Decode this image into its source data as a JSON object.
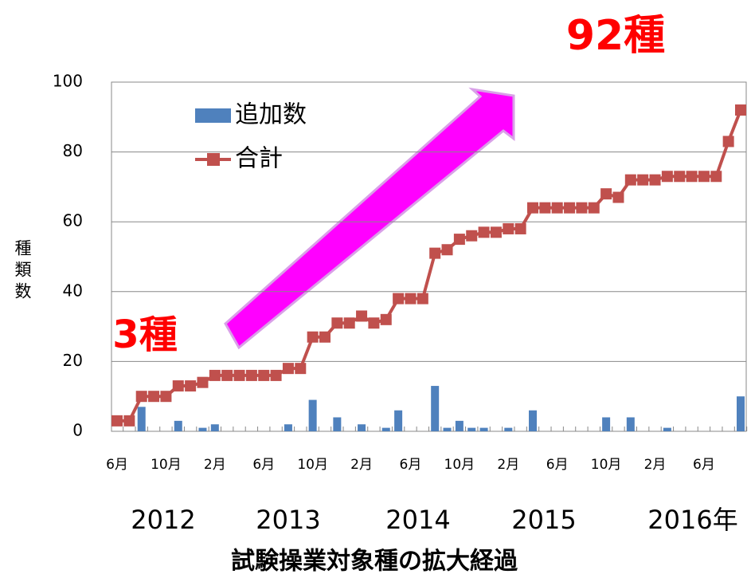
{
  "chart_data": {
    "type": "bar_line",
    "title": "試験操業対象種の拡大経過",
    "y_label": "種類数",
    "annotations": [
      "92種",
      "3種"
    ],
    "year_labels": [
      "2012",
      "2013",
      "2014",
      "2015",
      "2016年"
    ],
    "categories": [
      "6月",
      null,
      null,
      null,
      "10月",
      null,
      null,
      null,
      "2月",
      null,
      null,
      null,
      "6月",
      null,
      null,
      null,
      "10月",
      null,
      null,
      null,
      "2月",
      null,
      null,
      null,
      "6月",
      null,
      null,
      null,
      "10月",
      null,
      null,
      null,
      "2月",
      null,
      null,
      null,
      "6月",
      null,
      null,
      null,
      "10月",
      null,
      null,
      null,
      "2月",
      null,
      null,
      null,
      "6月",
      null,
      null,
      null
    ],
    "series": [
      {
        "name": "追加数",
        "type": "bar",
        "color": "#4f81bd",
        "values": [
          0,
          0,
          7,
          0,
          0,
          3,
          0,
          1,
          2,
          0,
          0,
          0,
          0,
          0,
          2,
          0,
          9,
          0,
          4,
          0,
          2,
          0,
          1,
          6,
          0,
          0,
          13,
          1,
          3,
          1,
          1,
          0,
          1,
          0,
          6,
          0,
          0,
          0,
          0,
          0,
          4,
          0,
          4,
          0,
          0,
          1,
          0,
          0,
          0,
          0,
          0,
          10
        ]
      },
      {
        "name": "合計",
        "type": "line",
        "color": "#c0504d",
        "values": [
          3,
          3,
          10,
          10,
          10,
          13,
          13,
          14,
          16,
          16,
          16,
          16,
          16,
          16,
          18,
          18,
          27,
          27,
          31,
          31,
          33,
          31,
          32,
          38,
          38,
          38,
          51,
          52,
          55,
          56,
          57,
          57,
          58,
          58,
          64,
          64,
          64,
          64,
          64,
          64,
          68,
          67,
          72,
          72,
          72,
          73,
          73,
          73,
          73,
          73,
          83,
          92
        ]
      }
    ],
    "ylim": [
      0,
      100
    ],
    "yticks": [
      0,
      20,
      40,
      60,
      80,
      100
    ],
    "grid": true,
    "legend": "upper left"
  }
}
